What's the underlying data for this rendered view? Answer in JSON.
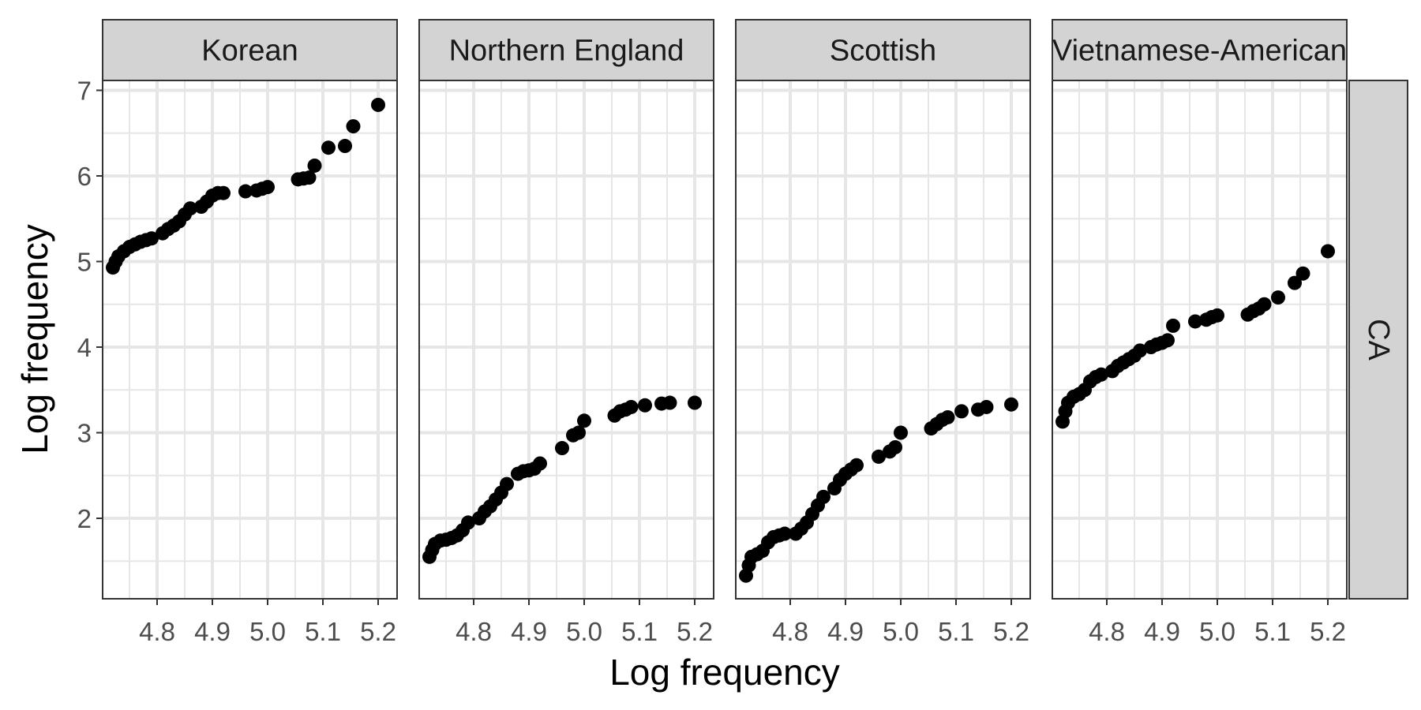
{
  "chart_data": {
    "type": "scatter",
    "xlabel": "Log frequency",
    "ylabel": "Log frequency",
    "row_strip": "CA",
    "xlim": [
      4.705,
      5.225
    ],
    "ylim": [
      1.1,
      7.1
    ],
    "x_ticks": [
      4.8,
      4.9,
      5.0,
      5.1,
      5.2
    ],
    "x_tick_labels": [
      "4.8",
      "4.9",
      "5.0",
      "5.1",
      "5.2"
    ],
    "y_ticks": [
      2,
      3,
      4,
      5,
      6,
      7
    ],
    "y_tick_labels": [
      "2",
      "3",
      "4",
      "5",
      "6",
      "7"
    ],
    "grid": true,
    "point_color": "#000000",
    "panel_border_color": "#333333",
    "strip_fill": "#d3d3d3",
    "grid_color": "#e6e6e6",
    "x": [
      4.72,
      4.725,
      4.73,
      4.74,
      4.75,
      4.76,
      4.77,
      4.78,
      4.79,
      4.81,
      4.82,
      4.83,
      4.84,
      4.85,
      4.86,
      4.88,
      4.89,
      4.9,
      4.91,
      4.92,
      4.96,
      4.98,
      4.99,
      5.0,
      5.055,
      5.065,
      5.075,
      5.085,
      5.11,
      5.14,
      5.155,
      5.2
    ],
    "panels": [
      {
        "name": "Korean",
        "y": [
          4.93,
          5.0,
          5.06,
          5.12,
          5.17,
          5.2,
          5.23,
          5.25,
          5.27,
          5.33,
          5.38,
          5.42,
          5.47,
          5.55,
          5.62,
          5.64,
          5.7,
          5.77,
          5.8,
          5.8,
          5.82,
          5.83,
          5.85,
          5.87,
          5.96,
          5.97,
          5.98,
          6.12,
          6.33,
          6.35,
          6.58,
          6.83
        ]
      },
      {
        "name": "Northern England",
        "y": [
          1.55,
          1.63,
          1.7,
          1.74,
          1.75,
          1.77,
          1.8,
          1.86,
          1.95,
          2.0,
          2.08,
          2.14,
          2.22,
          2.3,
          2.4,
          2.52,
          2.55,
          2.56,
          2.58,
          2.64,
          2.82,
          2.97,
          3.0,
          3.14,
          3.2,
          3.25,
          3.27,
          3.3,
          3.32,
          3.34,
          3.35,
          3.35
        ]
      },
      {
        "name": "Scottish",
        "y": [
          1.33,
          1.45,
          1.55,
          1.58,
          1.62,
          1.72,
          1.78,
          1.8,
          1.82,
          1.82,
          1.88,
          1.95,
          2.05,
          2.15,
          2.25,
          2.35,
          2.45,
          2.52,
          2.57,
          2.62,
          2.72,
          2.78,
          2.83,
          3.0,
          3.05,
          3.1,
          3.15,
          3.18,
          3.25,
          3.27,
          3.3,
          3.33
        ]
      },
      {
        "name": "Vietnamese-American",
        "y": [
          3.13,
          3.25,
          3.35,
          3.42,
          3.45,
          3.5,
          3.6,
          3.65,
          3.68,
          3.72,
          3.78,
          3.82,
          3.86,
          3.9,
          3.96,
          4.0,
          4.03,
          4.05,
          4.08,
          4.25,
          4.3,
          4.32,
          4.35,
          4.37,
          4.38,
          4.42,
          4.45,
          4.5,
          4.58,
          4.75,
          4.86,
          5.12
        ]
      }
    ]
  }
}
